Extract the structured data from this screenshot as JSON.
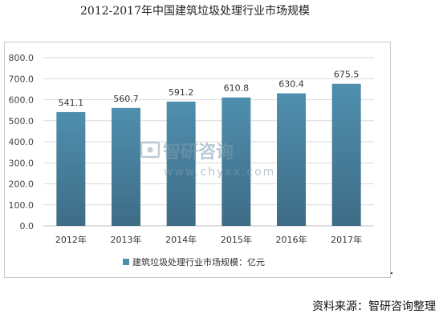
{
  "chart_data": {
    "type": "bar",
    "title": "2012-2017年中国建筑垃圾处理行业市场规模",
    "categories": [
      "2012年",
      "2013年",
      "2014年",
      "2015年",
      "2016年",
      "2017年"
    ],
    "series": [
      {
        "name": "建筑垃圾处理行业市场规模：亿元",
        "values": [
          541.1,
          560.7,
          591.2,
          610.8,
          630.4,
          675.5
        ]
      }
    ],
    "data_labels": [
      "541.1",
      "560.7",
      "591.2",
      "610.8",
      "630.4",
      "675.5"
    ],
    "y_ticks": [
      "0.0",
      "100.0",
      "200.0",
      "300.0",
      "400.0",
      "500.0",
      "600.0",
      "700.0",
      "800.0"
    ],
    "ylim": [
      0,
      800
    ],
    "grid": true,
    "legend_position": "bottom",
    "bar_color_top": "#4f8fae",
    "bar_color_bottom": "#3e6c86"
  },
  "watermark": {
    "brand": "智研咨询",
    "url": "www.chyxx.com"
  },
  "source_text": "资料来源：智研咨询整理"
}
